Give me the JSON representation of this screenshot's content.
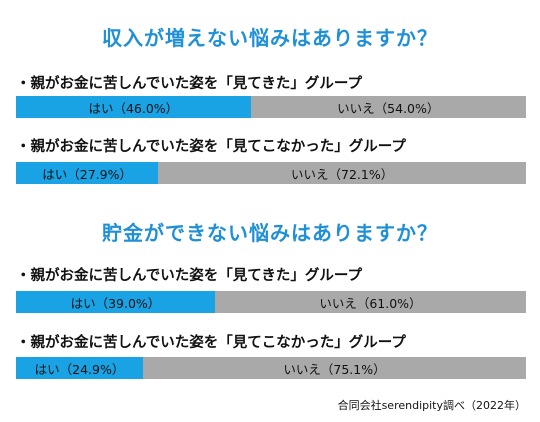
{
  "chart_data": [
    {
      "type": "bar",
      "orientation": "horizontal-stacked",
      "title": "収入が増えない悩みはありますか？",
      "categories": [
        "親がお金に苦しんでいた姿を「見てきた」グループ",
        "親がお金に苦しんでいた姿を「見てこなかった」グループ"
      ],
      "series": [
        {
          "name": "はい",
          "values": [
            46.0,
            27.9
          ]
        },
        {
          "name": "いいえ",
          "values": [
            54.0,
            72.1
          ]
        }
      ],
      "labels": [
        {
          "yes": "はい（46.0%）",
          "no": "いいえ（54.0%）"
        },
        {
          "yes": "はい（27.9%）",
          "no": "いいえ（72.1%）"
        }
      ],
      "colors": {
        "yes": "#19a2e4",
        "no": "#a9a9a9"
      },
      "xlim": [
        0,
        100
      ]
    },
    {
      "type": "bar",
      "orientation": "horizontal-stacked",
      "title": "貯金ができない悩みはありますか？",
      "categories": [
        "親がお金に苦しんでいた姿を「見てきた」グループ",
        "親がお金に苦しんでいた姿を「見てこなかった」グループ"
      ],
      "series": [
        {
          "name": "はい",
          "values": [
            39.0,
            24.9
          ]
        },
        {
          "name": "いいえ",
          "values": [
            61.0,
            75.1
          ]
        }
      ],
      "labels": [
        {
          "yes": "はい（39.0%）",
          "no": "いいえ（61.0%）"
        },
        {
          "yes": "はい（24.9%）",
          "no": "いいえ（75.1%）"
        }
      ],
      "colors": {
        "yes": "#19a2e4",
        "no": "#a9a9a9"
      },
      "xlim": [
        0,
        100
      ]
    }
  ],
  "source": "合同会社serendipity調べ（2022年）"
}
